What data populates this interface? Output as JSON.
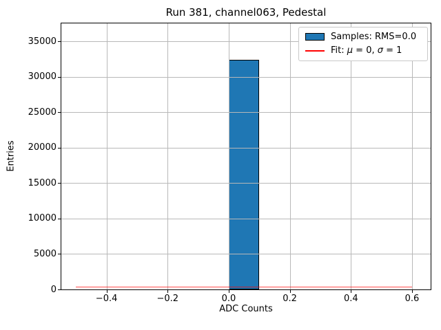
{
  "title": "Run 381, channel063, Pedestal",
  "axes": {
    "xlabel": "ADC Counts",
    "ylabel": "Entries"
  },
  "legend": {
    "samples": {
      "label": "Samples: RMS=0.0",
      "swatch_color": "#1f77b4",
      "swatch_edge": "#000000"
    },
    "fit": {
      "prefix": "Fit: ",
      "mu_symbol": "μ",
      "mu_eq": " = 0, ",
      "sigma_symbol": "σ",
      "sigma_eq": " = 1",
      "line_color": "#ff0000"
    }
  },
  "chart_data": {
    "type": "bar",
    "subtype": "histogram",
    "title": "Run 381, channel063, Pedestal",
    "xlabel": "ADC Counts",
    "ylabel": "Entries",
    "xlim": [
      -0.548,
      0.661
    ],
    "ylim": [
      0,
      37575
    ],
    "xticks": [
      -0.4,
      -0.2,
      0.0,
      0.2,
      0.4,
      0.6
    ],
    "yticks": [
      0,
      5000,
      10000,
      15000,
      20000,
      25000,
      30000,
      35000
    ],
    "grid": true,
    "grid_color": "#b8b8b8",
    "legend_position": "upper right",
    "bar_color": "#1f77b4",
    "bar_edge_color": "#000000",
    "bins": {
      "range": [
        -0.5,
        0.6
      ],
      "bin_width": 0.1,
      "filled_bin": {
        "x0": 0.0,
        "x1": 0.1,
        "count": 32400
      }
    },
    "series": [
      {
        "name": "Samples: RMS=0.0",
        "type": "histogram",
        "rms": 0.0,
        "color": "#1f77b4"
      },
      {
        "name": "Fit: μ = 0, σ = 1",
        "type": "gaussian-line",
        "mu": 0,
        "sigma": 1,
        "visible_level": 420,
        "color": "#ff0000"
      }
    ]
  }
}
